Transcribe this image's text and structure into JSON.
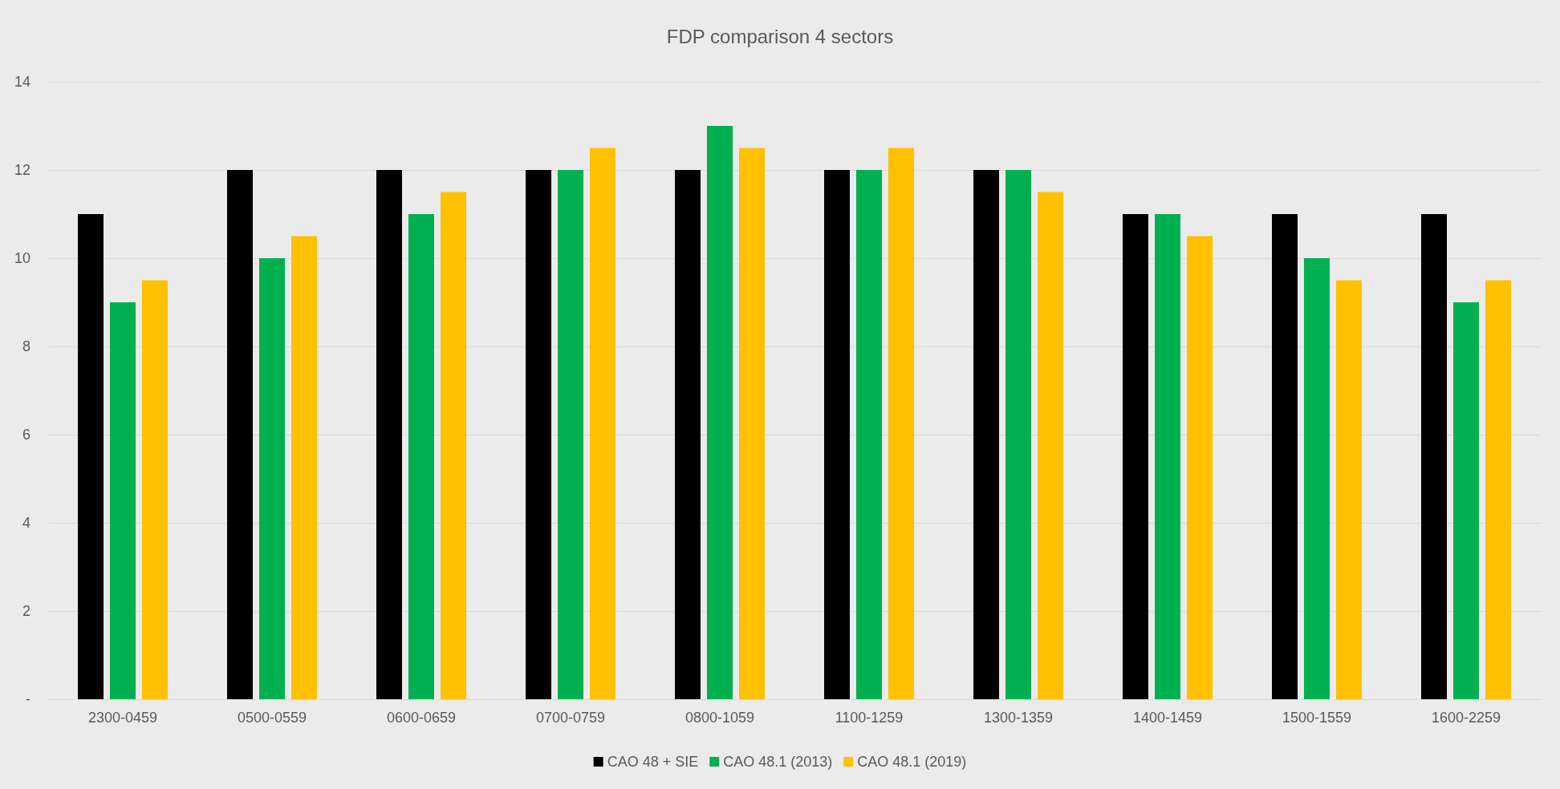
{
  "chart_data": {
    "type": "bar",
    "title": "FDP comparison 4 sectors",
    "categories": [
      "2300-0459",
      "0500-0559",
      "0600-0659",
      "0700-0759",
      "0800-1059",
      "1100-1259",
      "1300-1359",
      "1400-1459",
      "1500-1559",
      "1600-2259"
    ],
    "series": [
      {
        "name": "CAO 48 + SIE",
        "color": "#000000",
        "values": [
          11,
          12,
          12,
          12,
          12,
          12,
          12,
          11,
          11,
          11
        ]
      },
      {
        "name": "CAO 48.1 (2013)",
        "color": "#00b050",
        "values": [
          9,
          10,
          11,
          12,
          13,
          12,
          12,
          11,
          10,
          9
        ]
      },
      {
        "name": "CAO 48.1 (2019)",
        "color": "#ffc000",
        "values": [
          9.5,
          10.5,
          11.5,
          12.5,
          12.5,
          12.5,
          11.5,
          10.5,
          9.5,
          9.5
        ]
      }
    ],
    "ylim": [
      0,
      14
    ],
    "yticks": [
      {
        "value": 0,
        "label": "-"
      },
      2,
      4,
      6,
      8,
      10,
      12,
      14
    ],
    "grid": "y",
    "legend": "bottom"
  }
}
